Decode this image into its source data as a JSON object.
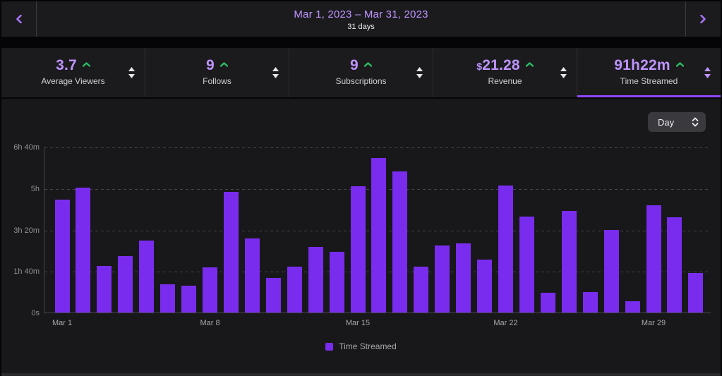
{
  "colors": {
    "accent_text_purple": "#bf94ff",
    "bar_purple": "#7a2cee",
    "selected_underline_purple": "#9147ff",
    "trend_green": "#2bbd64",
    "panel_bg": "#18181a"
  },
  "date_nav": {
    "title": "Mar 1, 2023 – Mar 31, 2023",
    "subtitle": "31 days",
    "prev_icon": "chevron-left",
    "next_icon": "chevron-right"
  },
  "stats": [
    {
      "prefix": "",
      "value": "3.7",
      "label": "Average Viewers",
      "trend": "up",
      "selected": false
    },
    {
      "prefix": "",
      "value": "9",
      "label": "Follows",
      "trend": "up",
      "selected": false
    },
    {
      "prefix": "",
      "value": "9",
      "label": "Subscriptions",
      "trend": "up",
      "selected": false
    },
    {
      "prefix": "$",
      "value": "21.28",
      "label": "Revenue",
      "trend": "up",
      "selected": false
    },
    {
      "prefix": "",
      "value": "91h22m",
      "label": "Time Streamed",
      "trend": "up",
      "selected": true
    }
  ],
  "controls": {
    "interval_select": "Day",
    "interval_icon": "up-down-chevrons"
  },
  "legend": {
    "label": "Time Streamed",
    "swatch_color": "#7a2cee"
  },
  "chart_data": {
    "type": "bar",
    "series_name": "Time Streamed",
    "x": [
      "Mar 1",
      "Mar 2",
      "Mar 3",
      "Mar 4",
      "Mar 5",
      "Mar 6",
      "Mar 7",
      "Mar 8",
      "Mar 9",
      "Mar 10",
      "Mar 11",
      "Mar 12",
      "Mar 13",
      "Mar 14",
      "Mar 15",
      "Mar 16",
      "Mar 17",
      "Mar 18",
      "Mar 19",
      "Mar 20",
      "Mar 21",
      "Mar 22",
      "Mar 23",
      "Mar 24",
      "Mar 25",
      "Mar 26",
      "Mar 27",
      "Mar 28",
      "Mar 29",
      "Mar 30",
      "Mar 31"
    ],
    "values_minutes": [
      272,
      302,
      113,
      136,
      173,
      68,
      64,
      109,
      291,
      179,
      84,
      110,
      159,
      147,
      304,
      373,
      340,
      110,
      162,
      167,
      128,
      307,
      232,
      48,
      245,
      50,
      199,
      27,
      258,
      229,
      96
    ],
    "total_label": "91h22m",
    "ylim": [
      0,
      400
    ],
    "y_tick_minutes": [
      400,
      300,
      200,
      100,
      0
    ],
    "y_tick_labels": [
      "6h 40m",
      "5h",
      "3h 20m",
      "1h 40m",
      "0s"
    ],
    "x_tick_indices": [
      0,
      7,
      14,
      21,
      28
    ],
    "x_tick_labels": [
      "Mar 1",
      "Mar 8",
      "Mar 15",
      "Mar 22",
      "Mar 29"
    ],
    "grid": "dashed-horizontal",
    "legend_position": "bottom-center",
    "bar_color": "#7a2cee"
  }
}
